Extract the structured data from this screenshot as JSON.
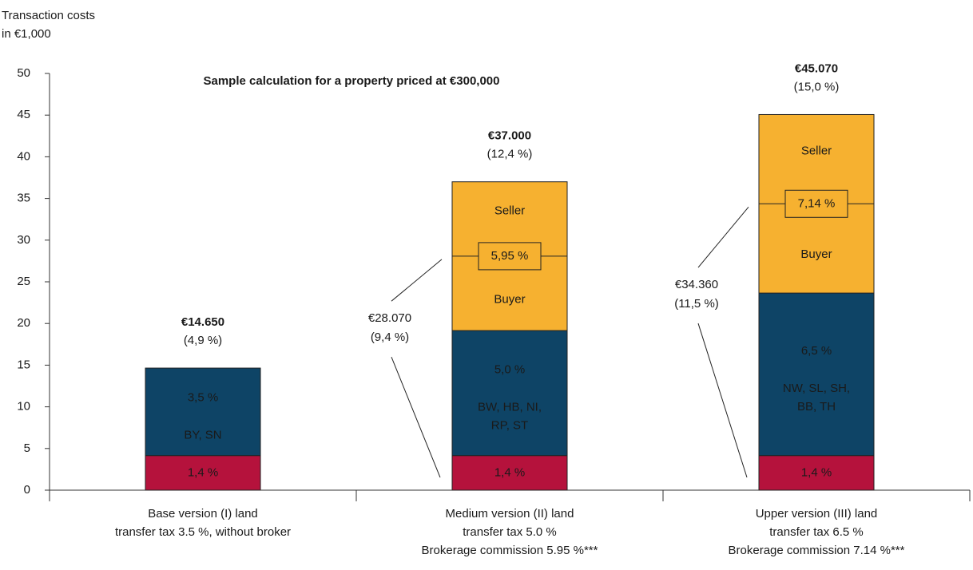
{
  "chart_data": {
    "type": "stacked_bar",
    "title": "Sample calculation for a property priced at €300,000",
    "ylabel": [
      "Transaction costs",
      "in €1,000"
    ],
    "categories": [
      [
        "Base version (I) land",
        "transfer tax 3.5 %, without broker"
      ],
      [
        "Medium version (II) land",
        "transfer tax 5.0 %",
        "Brokerage commission 5.95 %***"
      ],
      [
        "Upper version (III) land",
        "transfer tax 6.5 %",
        "Brokerage commission 7.14 %***"
      ]
    ],
    "series": [
      {
        "color": "#b5123c",
        "values": [
          4.15,
          4.15,
          4.15
        ],
        "labels": [
          [
            "1,4 %"
          ],
          [
            "1,4 %"
          ],
          [
            "1,4 %"
          ]
        ]
      },
      {
        "color": "#0e4466",
        "values": [
          10.5,
          15,
          19.5
        ],
        "labels": [
          [
            "3,5 %",
            "BY, SN"
          ],
          [
            "5,0 %",
            "BW, HB, NI,",
            "RP, ST"
          ],
          [
            "6,5 %",
            "NW, SL, SH,",
            "BB, TH"
          ]
        ]
      },
      {
        "color": "#f6b130",
        "values": [
          0,
          17.85,
          21.42
        ],
        "labels": [
          null,
          {
            "upper": "Seller",
            "split": "5,95 %",
            "lower": "Buyer"
          },
          {
            "upper": "Seller",
            "split": "7,14 %",
            "lower": "Buyer"
          }
        ]
      }
    ],
    "total_labels": [
      [
        "€14.650",
        "(4,9 %)"
      ],
      [
        "€37.000",
        "(12,4 %)"
      ],
      [
        "€45.070",
        "(15,0 %)"
      ]
    ],
    "bracket_labels": [
      null,
      [
        "€28.070",
        "(9,4 %)"
      ],
      [
        "€34.360",
        "(11,5 %)"
      ]
    ],
    "ylim": [
      0,
      50
    ],
    "yticks": [
      0,
      5,
      10,
      15,
      20,
      25,
      30,
      35,
      40,
      45,
      50
    ]
  }
}
